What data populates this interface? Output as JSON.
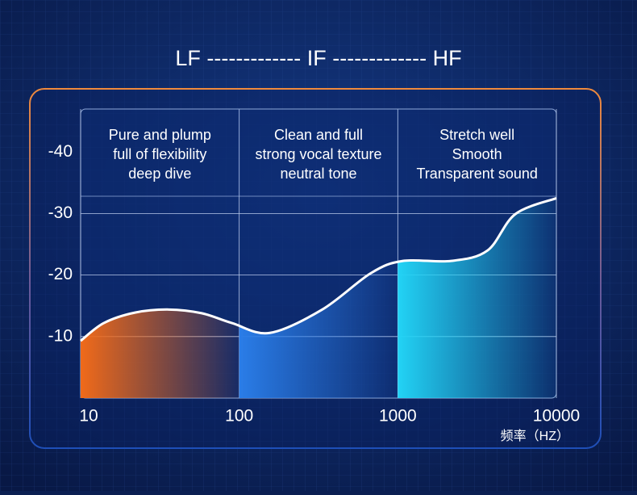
{
  "chart_data": {
    "type": "line",
    "title": "LF ------------- IF ------------- HF",
    "x_label": "频率（HZ）",
    "x": [
      10,
      14,
      22,
      36,
      58,
      90,
      156,
      334,
      675,
      1077,
      2170,
      3680,
      5500,
      10000
    ],
    "series": [
      {
        "color": "#ffffff",
        "values": [
          -9.3,
          -12.2,
          -13.9,
          -14.4,
          -13.8,
          -12.2,
          -10.6,
          -14.4,
          -20.3,
          -22.3,
          -22.3,
          -24.0,
          -29.9,
          -32.5
        ]
      }
    ],
    "xlim": [
      10,
      10000
    ],
    "xticks": [
      10,
      100,
      1000,
      10000
    ],
    "xlog": true,
    "ylim": [
      0,
      -47
    ],
    "yticks": [
      -40,
      -30,
      -20,
      -10
    ],
    "grid": true,
    "bands": [
      {
        "from": 10,
        "to": 100,
        "color": "#f06a1a",
        "lines": [
          "Pure and plump",
          "full of flexibility",
          "deep dive"
        ]
      },
      {
        "from": 100,
        "to": 1000,
        "color": "#2a7de8",
        "lines": [
          "Clean and full",
          "strong vocal texture",
          "neutral tone"
        ]
      },
      {
        "from": 1000,
        "to": 10000,
        "color": "#22d3f5",
        "lines": [
          "Stretch well",
          "Smooth",
          "Transparent sound"
        ]
      }
    ]
  }
}
